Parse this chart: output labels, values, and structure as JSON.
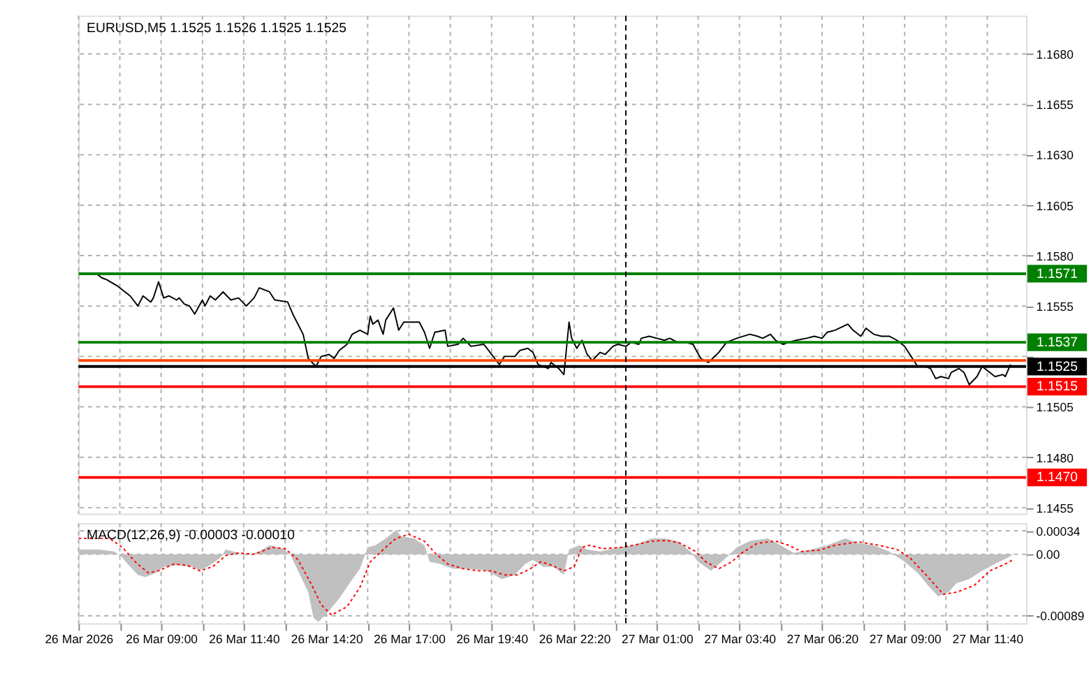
{
  "chart_data": [
    {
      "type": "line",
      "title": "EURUSD,M5  1.1525 1.1526 1.1525 1.1525",
      "xlim": [
        "2026-03-26T06:20",
        "2026-03-27T12:55"
      ],
      "ylim": [
        1.1452,
        1.1699
      ],
      "xticks": [
        {
          "value": "2026-03-26T06:20",
          "label": null
        },
        {
          "value": "2026-03-26T07:40",
          "label": null
        },
        {
          "value": "2026-03-26T09:00",
          "label": null
        },
        {
          "value": "2026-03-26T10:20",
          "label": null
        },
        {
          "value": "2026-03-26T11:40",
          "label": null
        },
        {
          "value": "2026-03-26T13:00",
          "label": null
        },
        {
          "value": "2026-03-26T14:20",
          "label": null
        },
        {
          "value": "2026-03-26T15:40",
          "label": null
        },
        {
          "value": "2026-03-26T17:00",
          "label": null
        },
        {
          "value": "2026-03-26T18:20",
          "label": null
        },
        {
          "value": "2026-03-26T19:40",
          "label": null
        },
        {
          "value": "2026-03-26T21:00",
          "label": null
        },
        {
          "value": "2026-03-26T22:20",
          "label": null
        },
        {
          "value": "2026-03-26T23:40",
          "label": null
        },
        {
          "value": "2026-03-27T01:00",
          "label": null
        },
        {
          "value": "2026-03-27T02:20",
          "label": null
        },
        {
          "value": "2026-03-27T03:40",
          "label": null
        },
        {
          "value": "2026-03-27T05:00",
          "label": null
        },
        {
          "value": "2026-03-27T06:20",
          "label": null
        },
        {
          "value": "2026-03-27T07:40",
          "label": null
        },
        {
          "value": "2026-03-27T09:00",
          "label": null
        },
        {
          "value": "2026-03-27T10:20",
          "label": null
        },
        {
          "value": "2026-03-27T11:40",
          "label": null
        }
      ],
      "yticks": [
        {
          "value": 1.1455,
          "label": "1.1455"
        },
        {
          "value": 1.148,
          "label": "1.1480"
        },
        {
          "value": 1.1505,
          "label": "1.1505"
        },
        {
          "value": 1.153,
          "label": null
        },
        {
          "value": 1.1555,
          "label": "1.1555"
        },
        {
          "value": 1.158,
          "label": "1.1580"
        },
        {
          "value": 1.1605,
          "label": "1.1605"
        },
        {
          "value": 1.163,
          "label": "1.1630"
        },
        {
          "value": 1.1655,
          "label": "1.1655"
        },
        {
          "value": 1.168,
          "label": "1.1680"
        }
      ],
      "tick_labels": "y",
      "grid": true,
      "marker": "none",
      "series": [
        {
          "color": "#000000",
          "line_style": "solid",
          "x": [
            "2026-03-26T06:55",
            "2026-03-26T07:05",
            "2026-03-26T07:15",
            "2026-03-26T07:35",
            "2026-03-26T07:50",
            "2026-03-26T08:00",
            "2026-03-26T08:15",
            "2026-03-26T08:25",
            "2026-03-26T08:40",
            "2026-03-26T08:45",
            "2026-03-26T08:55",
            "2026-03-26T09:05",
            "2026-03-26T09:15",
            "2026-03-26T09:30",
            "2026-03-26T09:35",
            "2026-03-26T09:45",
            "2026-03-26T09:55",
            "2026-03-26T10:05",
            "2026-03-26T10:20",
            "2026-03-26T10:25",
            "2026-03-26T10:35",
            "2026-03-26T10:45",
            "2026-03-26T11:00",
            "2026-03-26T11:15",
            "2026-03-26T11:30",
            "2026-03-26T11:45",
            "2026-03-26T12:00",
            "2026-03-26T12:10",
            "2026-03-26T12:30",
            "2026-03-26T12:40",
            "2026-03-26T13:05",
            "2026-03-26T13:15",
            "2026-03-26T13:35",
            "2026-03-26T13:45",
            "2026-03-26T14:00",
            "2026-03-26T14:10",
            "2026-03-26T14:25",
            "2026-03-26T14:35",
            "2026-03-26T14:45",
            "2026-03-26T15:00",
            "2026-03-26T15:10",
            "2026-03-26T15:25",
            "2026-03-26T15:40",
            "2026-03-26T15:45",
            "2026-03-26T15:50",
            "2026-03-26T16:00",
            "2026-03-26T16:10",
            "2026-03-26T16:15",
            "2026-03-26T16:30",
            "2026-03-26T16:40",
            "2026-03-26T16:50",
            "2026-03-26T17:20",
            "2026-03-26T17:30",
            "2026-03-26T17:40",
            "2026-03-26T17:50",
            "2026-03-26T18:10",
            "2026-03-26T18:15",
            "2026-03-26T18:35",
            "2026-03-26T18:45",
            "2026-03-26T19:00",
            "2026-03-26T19:25",
            "2026-03-26T19:40",
            "2026-03-26T19:55",
            "2026-03-26T20:05",
            "2026-03-26T20:25",
            "2026-03-26T20:35",
            "2026-03-26T20:50",
            "2026-03-26T21:00",
            "2026-03-26T21:10",
            "2026-03-26T21:20",
            "2026-03-26T21:30",
            "2026-03-26T21:35",
            "2026-03-26T21:50",
            "2026-03-26T22:00",
            "2026-03-26T22:10",
            "2026-03-26T22:15",
            "2026-03-26T22:25",
            "2026-03-26T22:35",
            "2026-03-26T22:45",
            "2026-03-26T22:55",
            "2026-03-26T23:10",
            "2026-03-26T23:20",
            "2026-03-26T23:35",
            "2026-03-26T23:45",
            "2026-03-27T00:00",
            "2026-03-27T00:10",
            "2026-03-27T00:25",
            "2026-03-27T00:30",
            "2026-03-27T00:45",
            "2026-03-27T01:00",
            "2026-03-27T01:15",
            "2026-03-27T01:25",
            "2026-03-27T01:40",
            "2026-03-27T01:55",
            "2026-03-27T02:10",
            "2026-03-27T02:25",
            "2026-03-27T02:40",
            "2026-03-27T03:00",
            "2026-03-27T03:15",
            "2026-03-27T03:35",
            "2026-03-27T04:00",
            "2026-03-27T04:15",
            "2026-03-27T04:25",
            "2026-03-27T04:40",
            "2026-03-27T04:50",
            "2026-03-27T05:05",
            "2026-03-27T05:15",
            "2026-03-27T05:30",
            "2026-03-27T05:50",
            "2026-03-27T06:05",
            "2026-03-27T06:20",
            "2026-03-27T06:30",
            "2026-03-27T06:45",
            "2026-03-27T07:10",
            "2026-03-27T07:20",
            "2026-03-27T07:35",
            "2026-03-27T07:45",
            "2026-03-27T08:00",
            "2026-03-27T08:15",
            "2026-03-27T08:30",
            "2026-03-27T08:45",
            "2026-03-27T09:00",
            "2026-03-27T09:15",
            "2026-03-27T09:25",
            "2026-03-27T09:40",
            "2026-03-27T09:50",
            "2026-03-27T10:00",
            "2026-03-27T10:10",
            "2026-03-27T10:25",
            "2026-03-27T10:30",
            "2026-03-27T10:45",
            "2026-03-27T10:55",
            "2026-03-27T11:05",
            "2026-03-27T11:20",
            "2026-03-27T11:30",
            "2026-03-27T11:45",
            "2026-03-27T11:55",
            "2026-03-27T12:10",
            "2026-03-27T12:15",
            "2026-03-27T12:25"
          ],
          "values": [
            1.1571,
            1.1569,
            1.1568,
            1.1565,
            1.1562,
            1.156,
            1.1555,
            1.156,
            1.1557,
            1.1559,
            1.1567,
            1.1559,
            1.156,
            1.1558,
            1.1559,
            1.1556,
            1.1555,
            1.1551,
            1.1558,
            1.1555,
            1.156,
            1.1558,
            1.1562,
            1.1558,
            1.1559,
            1.1555,
            1.1559,
            1.1564,
            1.1562,
            1.1558,
            1.1557,
            1.1551,
            1.1541,
            1.1529,
            1.1525,
            1.153,
            1.1531,
            1.1529,
            1.1533,
            1.1536,
            1.1541,
            1.1543,
            1.1541,
            1.155,
            1.1546,
            1.1548,
            1.1541,
            1.1548,
            1.1554,
            1.1543,
            1.1547,
            1.1547,
            1.1542,
            1.1534,
            1.1542,
            1.1543,
            1.1535,
            1.1536,
            1.1539,
            1.1535,
            1.1536,
            1.1531,
            1.1526,
            1.153,
            1.153,
            1.1533,
            1.1534,
            1.1532,
            1.1526,
            1.1525,
            1.1524,
            1.1527,
            1.1524,
            1.1521,
            1.1547,
            1.1539,
            1.1534,
            1.1538,
            1.1531,
            1.1528,
            1.1532,
            1.1531,
            1.1535,
            1.1536,
            1.1535,
            1.1537,
            1.1536,
            1.1539,
            1.154,
            1.1539,
            1.1538,
            1.1539,
            1.1537,
            1.1537,
            1.1536,
            1.1529,
            1.1527,
            1.1532,
            1.1537,
            1.1539,
            1.1541,
            1.154,
            1.1539,
            1.1541,
            1.1538,
            1.1536,
            1.1537,
            1.1538,
            1.1539,
            1.154,
            1.1539,
            1.1542,
            1.1543,
            1.1546,
            1.1543,
            1.154,
            1.1544,
            1.1541,
            1.154,
            1.154,
            1.1538,
            1.1535,
            1.1529,
            1.1525,
            1.1525,
            1.1524,
            1.1519,
            1.152,
            1.1519,
            1.1522,
            1.1524,
            1.1522,
            1.1516,
            1.152,
            1.1525,
            1.1522,
            1.152,
            1.1521,
            1.152,
            1.1526
          ]
        }
      ],
      "ref_lines": [
        {
          "axis": "y",
          "value": 1.1571,
          "label": "1.1571",
          "color": "#008000",
          "line_style": "solid"
        },
        {
          "axis": "y",
          "value": 1.1537,
          "label": "1.1537",
          "color": "#008000",
          "line_style": "solid"
        },
        {
          "axis": "y",
          "value": 1.1528,
          "label": null,
          "color": "#ff4500",
          "line_style": "solid"
        },
        {
          "axis": "y",
          "value": 1.1525,
          "label": "1.1525",
          "color": "#000000",
          "line_style": "solid"
        },
        {
          "axis": "y",
          "value": 1.1515,
          "label": "1.1515",
          "color": "#ff0000",
          "line_style": "solid"
        },
        {
          "axis": "y",
          "value": 1.147,
          "label": "1.1470",
          "color": "#ff0000",
          "line_style": "solid"
        },
        {
          "axis": "x",
          "value": "2026-03-27T00:00",
          "label": null,
          "color": "#000000",
          "line_style": "dashed"
        }
      ]
    },
    {
      "type": "area",
      "title": "MACD(12,26,9) -0.00003 -0.00010",
      "xlim": [
        "2026-03-26T06:20",
        "2026-03-27T12:55"
      ],
      "ylim": [
        -0.001,
        0.00045
      ],
      "xticks": [
        {
          "value": "2026-03-26T06:20",
          "label": "26 Mar 2026"
        },
        {
          "value": "2026-03-26T07:40",
          "label": null
        },
        {
          "value": "2026-03-26T09:00",
          "label": "26 Mar 09:00"
        },
        {
          "value": "2026-03-26T10:20",
          "label": null
        },
        {
          "value": "2026-03-26T11:40",
          "label": "26 Mar 11:40"
        },
        {
          "value": "2026-03-26T13:00",
          "label": null
        },
        {
          "value": "2026-03-26T14:20",
          "label": "26 Mar 14:20"
        },
        {
          "value": "2026-03-26T15:40",
          "label": null
        },
        {
          "value": "2026-03-26T17:00",
          "label": "26 Mar 17:00"
        },
        {
          "value": "2026-03-26T18:20",
          "label": null
        },
        {
          "value": "2026-03-26T19:40",
          "label": "26 Mar 19:40"
        },
        {
          "value": "2026-03-26T21:00",
          "label": null
        },
        {
          "value": "2026-03-26T22:20",
          "label": "26 Mar 22:20"
        },
        {
          "value": "2026-03-26T23:40",
          "label": null
        },
        {
          "value": "2026-03-27T01:00",
          "label": "27 Mar 01:00"
        },
        {
          "value": "2026-03-27T02:20",
          "label": null
        },
        {
          "value": "2026-03-27T03:40",
          "label": "27 Mar 03:40"
        },
        {
          "value": "2026-03-27T05:00",
          "label": null
        },
        {
          "value": "2026-03-27T06:20",
          "label": "27 Mar 06:20"
        },
        {
          "value": "2026-03-27T07:40",
          "label": null
        },
        {
          "value": "2026-03-27T09:00",
          "label": "27 Mar 09:00"
        },
        {
          "value": "2026-03-27T10:20",
          "label": null
        },
        {
          "value": "2026-03-27T11:40",
          "label": "27 Mar 11:40"
        }
      ],
      "yticks": [
        {
          "value": 0.00034,
          "label": "0.00034"
        },
        {
          "value": 0,
          "label": "0.00"
        },
        {
          "value": -0.00089,
          "label": "-0.00089"
        }
      ],
      "grid": true,
      "marker": "none",
      "series": [
        {
          "color": "#c0c0c0",
          "x": [
            "2026-03-26T06:20",
            "2026-03-26T07:00",
            "2026-03-26T07:30",
            "2026-03-26T07:45",
            "2026-03-26T07:55",
            "2026-03-26T08:15",
            "2026-03-26T08:30",
            "2026-03-26T08:50",
            "2026-03-26T09:05",
            "2026-03-26T09:30",
            "2026-03-26T10:00",
            "2026-03-26T10:15",
            "2026-03-26T10:30",
            "2026-03-26T10:55",
            "2026-03-26T11:05",
            "2026-03-26T11:30",
            "2026-03-26T11:45",
            "2026-03-26T12:10",
            "2026-03-26T12:30",
            "2026-03-26T12:55",
            "2026-03-26T13:10",
            "2026-03-26T13:25",
            "2026-03-26T13:45",
            "2026-03-26T13:55",
            "2026-03-26T14:05",
            "2026-03-26T14:25",
            "2026-03-26T14:45",
            "2026-03-26T15:05",
            "2026-03-26T15:25",
            "2026-03-26T15:40",
            "2026-03-26T15:55",
            "2026-03-26T16:15",
            "2026-03-26T16:35",
            "2026-03-26T16:45",
            "2026-03-26T17:10",
            "2026-03-26T17:30",
            "2026-03-26T17:40",
            "2026-03-26T18:00",
            "2026-03-26T18:25",
            "2026-03-26T19:00",
            "2026-03-26T19:30",
            "2026-03-26T20:00",
            "2026-03-26T20:25",
            "2026-03-26T20:45",
            "2026-03-26T21:00",
            "2026-03-26T21:20",
            "2026-03-26T21:40",
            "2026-03-26T22:00",
            "2026-03-26T22:10",
            "2026-03-26T22:30",
            "2026-03-26T22:45",
            "2026-03-26T23:10",
            "2026-03-26T23:45",
            "2026-03-27T00:15",
            "2026-03-27T00:50",
            "2026-03-27T01:15",
            "2026-03-27T01:40",
            "2026-03-27T02:05",
            "2026-03-27T02:20",
            "2026-03-27T02:45",
            "2026-03-27T03:10",
            "2026-03-27T03:35",
            "2026-03-27T04:00",
            "2026-03-27T04:35",
            "2026-03-27T05:00",
            "2026-03-27T05:25",
            "2026-03-27T06:00",
            "2026-03-27T06:30",
            "2026-03-27T07:05",
            "2026-03-27T07:30",
            "2026-03-27T08:00",
            "2026-03-27T08:30",
            "2026-03-27T09:00",
            "2026-03-27T09:25",
            "2026-03-27T09:45",
            "2026-03-27T10:05",
            "2026-03-27T10:25",
            "2026-03-27T10:40",
            "2026-03-27T11:05",
            "2026-03-27T11:30",
            "2026-03-27T11:55",
            "2026-03-27T12:20",
            "2026-03-27T12:30"
          ],
          "values": [
            7e-05,
            7e-05,
            4e-05,
            -5e-05,
            -0.00014,
            -0.0003,
            -0.00033,
            -0.00027,
            -0.00018,
            -0.00016,
            -0.00018,
            -0.00023,
            -0.00018,
            -5e-05,
            7e-05,
            2e-05,
            -2e-05,
            4e-05,
            0.00013,
            8e-05,
            0,
            -0.00024,
            -0.00055,
            -0.00092,
            -0.00098,
            -0.00082,
            -0.00064,
            -0.00042,
            -0.00021,
            0.0001,
            0.00013,
            0.00023,
            0.00035,
            0.00026,
            0.00023,
            0.00013,
            -0.00011,
            -0.00014,
            -0.00021,
            -0.00021,
            -0.00024,
            -0.00036,
            -0.0003,
            -0.00014,
            -8e-05,
            -0.00018,
            -0.00018,
            -0.0003,
            7e-05,
            0.00013,
            7e-05,
            4e-05,
            0.0001,
            0.00013,
            0.00023,
            0.00023,
            0.00019,
            4e-05,
            -0.00011,
            -0.00024,
            -8e-05,
            0.0001,
            0.00019,
            0.00023,
            0.00013,
            2e-05,
            7e-05,
            0.00013,
            0.00023,
            0.00016,
            0.00013,
            4e-05,
            -0.00011,
            -0.00027,
            -0.00045,
            -0.00061,
            -0.00055,
            -0.00042,
            -0.00036,
            -0.00024,
            -0.00014,
            -5e-05,
            0
          ]
        },
        {
          "type": "line",
          "color": "#ff0000",
          "line_style": "dotted",
          "x": [
            "2026-03-26T06:20",
            "2026-03-26T07:20",
            "2026-03-26T07:45",
            "2026-03-26T08:10",
            "2026-03-26T08:35",
            "2026-03-26T08:55",
            "2026-03-26T09:25",
            "2026-03-26T09:50",
            "2026-03-26T10:15",
            "2026-03-26T10:40",
            "2026-03-26T11:05",
            "2026-03-26T11:30",
            "2026-03-26T12:00",
            "2026-03-26T12:35",
            "2026-03-26T13:00",
            "2026-03-26T13:25",
            "2026-03-26T13:50",
            "2026-03-26T14:10",
            "2026-03-26T14:30",
            "2026-03-26T15:00",
            "2026-03-26T15:25",
            "2026-03-26T15:45",
            "2026-03-26T16:15",
            "2026-03-26T16:35",
            "2026-03-26T17:00",
            "2026-03-26T17:30",
            "2026-03-26T17:50",
            "2026-03-26T18:15",
            "2026-03-26T18:45",
            "2026-03-26T19:15",
            "2026-03-26T19:40",
            "2026-03-26T20:05",
            "2026-03-26T20:30",
            "2026-03-26T20:55",
            "2026-03-26T21:15",
            "2026-03-26T21:30",
            "2026-03-26T22:00",
            "2026-03-26T22:20",
            "2026-03-26T22:35",
            "2026-03-26T22:50",
            "2026-03-26T23:15",
            "2026-03-26T23:50",
            "2026-03-27T00:15",
            "2026-03-27T00:50",
            "2026-03-27T01:20",
            "2026-03-27T01:45",
            "2026-03-27T02:15",
            "2026-03-27T02:35",
            "2026-03-27T03:00",
            "2026-03-27T03:25",
            "2026-03-27T03:45",
            "2026-03-27T04:15",
            "2026-03-27T04:50",
            "2026-03-27T05:15",
            "2026-03-27T05:40",
            "2026-03-27T06:15",
            "2026-03-27T06:45",
            "2026-03-27T07:30",
            "2026-03-27T08:10",
            "2026-03-27T08:45",
            "2026-03-27T09:10",
            "2026-03-27T09:45",
            "2026-03-27T10:15",
            "2026-03-27T10:40",
            "2026-03-27T11:15",
            "2026-03-27T11:45",
            "2026-03-27T12:15",
            "2026-03-27T12:30"
          ],
          "values": [
            0.00023,
            0.00023,
            0.0001,
            -0.00011,
            -0.00027,
            -0.00024,
            -0.00014,
            -0.00016,
            -0.00024,
            -0.00018,
            -2e-05,
            2e-05,
            0,
            0.0001,
            8e-05,
            -8e-05,
            -0.00042,
            -0.00073,
            -0.00088,
            -0.00076,
            -0.00048,
            -0.00011,
            0.0001,
            0.00023,
            0.00029,
            0.00019,
            2e-05,
            -0.00014,
            -0.00021,
            -0.00024,
            -0.00024,
            -0.0003,
            -0.0003,
            -0.00021,
            -0.00011,
            -0.00014,
            -0.00024,
            -0.00018,
            0.0001,
            0.00013,
            8e-05,
            0.0001,
            0.00013,
            0.00019,
            0.0002,
            0.00016,
            4e-05,
            -0.00011,
            -0.00021,
            -0.00011,
            2e-05,
            0.00016,
            0.00019,
            0.00013,
            4e-05,
            6e-05,
            0.00013,
            0.00018,
            0.00013,
            7e-05,
            -5e-05,
            -0.00033,
            -0.00058,
            -0.00055,
            -0.00045,
            -0.00024,
            -0.00014,
            -8e-05
          ]
        }
      ],
      "ref_lines": [
        {
          "axis": "x",
          "value": "2026-03-27T00:00",
          "label": null,
          "color": "#000000",
          "line_style": "dashed"
        }
      ]
    }
  ]
}
